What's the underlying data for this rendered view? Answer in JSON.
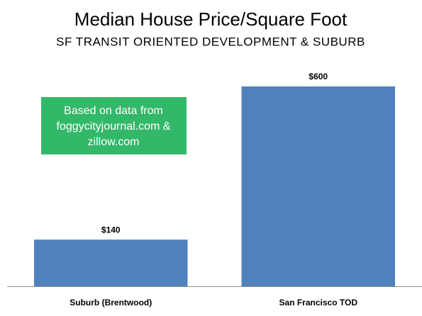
{
  "chart_data": {
    "type": "bar",
    "title": "Median House Price/Square Foot",
    "subtitle": "SF TRANSIT ORIENTED DEVELOPMENT & SUBURB",
    "categories": [
      "Suburb (Brentwood)",
      "San Francisco TOD"
    ],
    "values": [
      140,
      600
    ],
    "value_labels": [
      "$140",
      "$600"
    ],
    "color": "#4f81bd",
    "annotation": [
      "Based on data from",
      "foggycityjournal.com &",
      "zillow.com"
    ]
  }
}
